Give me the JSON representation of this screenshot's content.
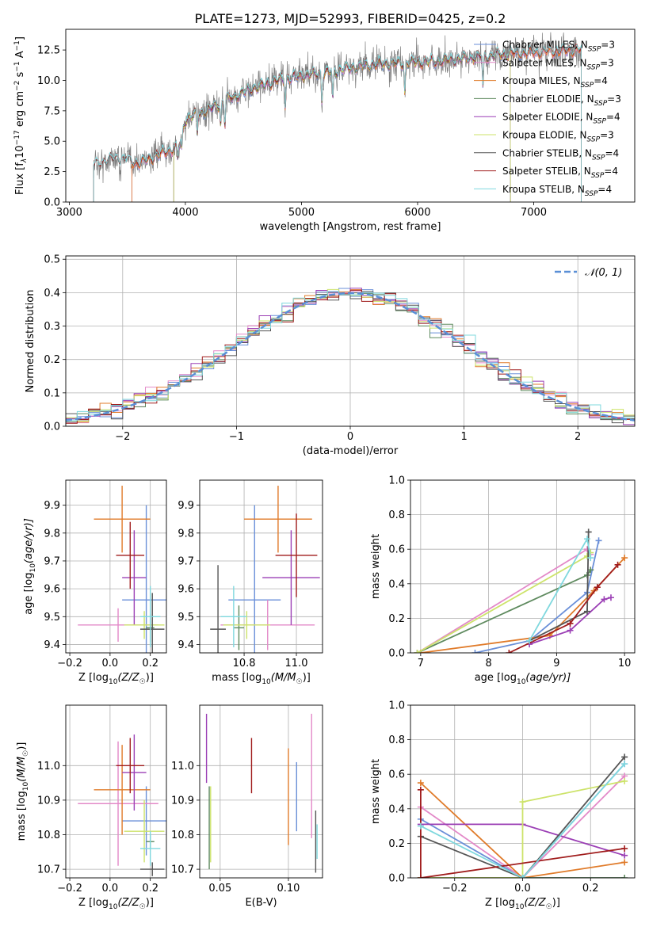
{
  "figure": {
    "title": "PLATE=1273, MJD=52993, FIBERID=0425, z=0.2"
  },
  "colors": {
    "chabrier_miles": "#6a8fd8",
    "salpeter_miles": "#e389c8",
    "kroupa_miles": "#e07b2a",
    "chabrier_elodie": "#5e8a5e",
    "salpeter_elodie": "#9b3fb5",
    "kroupa_elodie": "#cde36a",
    "chabrier_stelib": "#555555",
    "salpeter_stelib": "#a01c1c",
    "kroupa_stelib": "#7fd8de",
    "grid": "#b0b0b0",
    "gauss": "#5a8fd6"
  },
  "chart_data": [
    {
      "id": "spectrum",
      "type": "line",
      "xlabel": "wavelength [Angstrom, rest frame]",
      "ylabel_main": "Flux [f",
      "ylabel_sub": "λ",
      "ylabel_rest": "10",
      "ylabel_exp": "−17",
      "ylabel_unit": " erg cm",
      "ylabel_exp2": "−2",
      "ylabel_s": " s",
      "ylabel_exp3": "−1",
      "ylabel_a": " A",
      "ylabel_exp4": "−1",
      "ylabel_end": "]",
      "xlim": [
        2970,
        7870
      ],
      "ylim": [
        0,
        14.2
      ],
      "xticks": [
        3000,
        4000,
        5000,
        6000,
        7000
      ],
      "yticks": [
        0.0,
        2.5,
        5.0,
        7.5,
        10.0,
        12.5
      ],
      "xtick_labels": [
        "3000",
        "4000",
        "5000",
        "6000",
        "7000"
      ],
      "ytick_labels": [
        "0.0",
        "2.5",
        "5.0",
        "7.5",
        "10.0",
        "12.5"
      ],
      "continuum_wave": [
        3210,
        3400,
        3600,
        3800,
        3950,
        4000,
        4200,
        4400,
        4600,
        4800,
        5000,
        5200,
        5400,
        5600,
        5800,
        6000,
        6200,
        6400,
        6600,
        6800,
        7000,
        7200,
        7400,
        7800
      ],
      "continuum_flux": [
        3.0,
        3.6,
        3.2,
        4.0,
        4.6,
        6.8,
        7.6,
        8.6,
        9.4,
        10.0,
        10.4,
        10.6,
        11.0,
        11.3,
        11.4,
        11.5,
        11.6,
        11.8,
        12.0,
        12.2,
        12.3,
        12.4,
        12.5,
        12.5
      ],
      "absorption_lines": [
        3934,
        3969,
        4102,
        4304,
        4340,
        4861,
        5175,
        5270,
        5890,
        6563
      ],
      "model_edges": [
        {
          "series": "Chabrier MILES",
          "start": 3540,
          "end": 7410
        },
        {
          "series": "Salpeter MILES",
          "start": 3540,
          "end": 7410
        },
        {
          "series": "Kroupa MILES",
          "start": 3540,
          "end": 7410
        },
        {
          "series": "Chabrier ELODIE",
          "start": 3900,
          "end": 6800
        },
        {
          "series": "Salpeter ELODIE",
          "start": 3900,
          "end": 6800
        },
        {
          "series": "Kroupa ELODIE",
          "start": 3900,
          "end": 6800
        },
        {
          "series": "Chabrier STELIB",
          "start": 3210,
          "end": 7410
        },
        {
          "series": "Salpeter STELIB",
          "start": 3210,
          "end": 7410
        },
        {
          "series": "Kroupa STELIB",
          "start": 3210,
          "end": 7410
        }
      ],
      "legend": [
        {
          "label_a": "Chabrier MILES, N",
          "label_sub": "SSP",
          "label_b": "=3",
          "color": "#6a8fd8"
        },
        {
          "label_a": "Salpeter MILES, N",
          "label_sub": "SSP",
          "label_b": "=3",
          "color": "#e389c8"
        },
        {
          "label_a": "Kroupa MILES, N",
          "label_sub": "SSP",
          "label_b": "=4",
          "color": "#e07b2a"
        },
        {
          "label_a": "Chabrier ELODIE, N",
          "label_sub": "SSP",
          "label_b": "=3",
          "color": "#5e8a5e"
        },
        {
          "label_a": "Salpeter ELODIE, N",
          "label_sub": "SSP",
          "label_b": "=4",
          "color": "#9b3fb5"
        },
        {
          "label_a": "Kroupa ELODIE, N",
          "label_sub": "SSP",
          "label_b": "=3",
          "color": "#cde36a"
        },
        {
          "label_a": "Chabrier STELIB, N",
          "label_sub": "SSP",
          "label_b": "=4",
          "color": "#555555"
        },
        {
          "label_a": "Salpeter STELIB, N",
          "label_sub": "SSP",
          "label_b": "=4",
          "color": "#a01c1c"
        },
        {
          "label_a": "Kroupa STELIB, N",
          "label_sub": "SSP",
          "label_b": "=4",
          "color": "#7fd8de"
        }
      ],
      "legend_position": "top-right"
    },
    {
      "id": "residuals",
      "type": "histogram",
      "xlabel": "(data-model)/error",
      "ylabel": "Normed distribution",
      "xlim": [
        -2.5,
        2.5
      ],
      "ylim": [
        0,
        0.51
      ],
      "xticks": [
        -2,
        -1,
        0,
        1,
        2
      ],
      "yticks": [
        0.0,
        0.1,
        0.2,
        0.3,
        0.4,
        0.5
      ],
      "xtick_labels": [
        "−2",
        "−1",
        "0",
        "1",
        "2"
      ],
      "ytick_labels": [
        "0.0",
        "0.1",
        "0.2",
        "0.3",
        "0.4",
        "0.5"
      ],
      "bin_edges_start": -2.5,
      "bin_width": 0.1,
      "bin_count": 50,
      "gauss_label": "𝒩(0, 1)",
      "legend_position": "top-right",
      "grid": true
    },
    {
      "id": "age_vs_Z",
      "type": "errorbar",
      "xlabel": "Z [log",
      "xlabel_sub": "10",
      "xlabel_end": "(Z/Z",
      "xlabel_sun": "☉",
      "xlabel_close": ")]",
      "ylabel": "age  [log",
      "ylabel_sub": "10",
      "ylabel_end": "(age/yr)]",
      "xlim": [
        -0.22,
        0.28
      ],
      "ylim": [
        9.37,
        9.99
      ],
      "xticks": [
        -0.2,
        0.0,
        0.2
      ],
      "yticks": [
        9.4,
        9.5,
        9.6,
        9.7,
        9.8,
        9.9
      ],
      "xtick_labels": [
        "−0.2",
        "0.0",
        "0.2"
      ],
      "ytick_labels": [
        "9.4",
        "9.5",
        "9.6",
        "9.7",
        "9.8",
        "9.9"
      ],
      "points": [
        {
          "series": "Chabrier MILES",
          "x": 0.18,
          "xerr": 0.12,
          "y": 9.56,
          "yerr": 0.34
        },
        {
          "series": "Salpeter MILES",
          "x": 0.04,
          "xerr": 0.2,
          "y": 9.47,
          "yerr": 0.06
        },
        {
          "series": "Kroupa MILES",
          "x": 0.06,
          "xerr": 0.14,
          "y": 9.85,
          "yerr": 0.12
        },
        {
          "series": "Chabrier ELODIE",
          "x": 0.2,
          "xerr": 0.02,
          "y": 9.46,
          "yerr": 0.05
        },
        {
          "series": "Salpeter ELODIE",
          "x": 0.12,
          "xerr": 0.06,
          "y": 9.64,
          "yerr": 0.17
        },
        {
          "series": "Kroupa ELODIE",
          "x": 0.17,
          "xerr": 0.1,
          "y": 9.47,
          "yerr": 0.05
        },
        {
          "series": "Chabrier STELIB",
          "x": 0.21,
          "xerr": 0.06,
          "y": 9.455,
          "yerr": 0.13
        },
        {
          "series": "Salpeter STELIB",
          "x": 0.1,
          "xerr": 0.07,
          "y": 9.72,
          "yerr": 0.12
        },
        {
          "series": "Kroupa STELIB",
          "x": 0.2,
          "xerr": 0.05,
          "y": 9.5,
          "yerr": 0.11
        }
      ]
    },
    {
      "id": "age_vs_mass",
      "type": "errorbar",
      "xlabel": "mass [log",
      "xlabel_sub": "10",
      "xlabel_end": "(M/M",
      "xlabel_sun": "☉",
      "xlabel_close": ")]",
      "xlim": [
        10.63,
        11.1
      ],
      "ylim": [
        9.37,
        9.99
      ],
      "xticks": [
        10.8,
        11.0
      ],
      "yticks": [
        9.4,
        9.5,
        9.6,
        9.7,
        9.8,
        9.9
      ],
      "xtick_labels": [
        "10.8",
        "11.0"
      ],
      "ytick_labels": [
        "9.4",
        "9.5",
        "9.6",
        "9.7",
        "9.8",
        "9.9"
      ],
      "points": [
        {
          "series": "Chabrier MILES",
          "x": 10.84,
          "xerr": 0.1,
          "y": 9.56,
          "yerr": 0.34
        },
        {
          "series": "Salpeter MILES",
          "x": 10.89,
          "xerr": 0.18,
          "y": 9.47,
          "yerr": 0.09
        },
        {
          "series": "Kroupa MILES",
          "x": 10.93,
          "xerr": 0.13,
          "y": 9.85,
          "yerr": 0.12
        },
        {
          "series": "Chabrier ELODIE",
          "x": 10.78,
          "xerr": 0.02,
          "y": 9.46,
          "yerr": 0.08
        },
        {
          "series": "Salpeter ELODIE",
          "x": 10.98,
          "xerr": 0.11,
          "y": 9.64,
          "yerr": 0.17
        },
        {
          "series": "Kroupa ELODIE",
          "x": 10.81,
          "xerr": 0.09,
          "y": 9.47,
          "yerr": 0.05
        },
        {
          "series": "Chabrier STELIB",
          "x": 10.7,
          "xerr": 0.03,
          "y": 9.455,
          "yerr": 0.23
        },
        {
          "series": "Salpeter STELIB",
          "x": 11.0,
          "xerr": 0.08,
          "y": 9.72,
          "yerr": 0.15
        },
        {
          "series": "Kroupa STELIB",
          "x": 10.76,
          "xerr": 0.05,
          "y": 9.5,
          "yerr": 0.11
        }
      ]
    },
    {
      "id": "weight_vs_age",
      "type": "line",
      "xlabel": "age  [log",
      "xlabel_sub": "10",
      "xlabel_end": "(age/yr)]",
      "ylabel": "mass weight",
      "xlim": [
        6.85,
        10.15
      ],
      "ylim": [
        0,
        1
      ],
      "xticks": [
        7,
        8,
        9,
        10
      ],
      "yticks": [
        0.0,
        0.2,
        0.4,
        0.6,
        0.8,
        1.0
      ],
      "xtick_labels": [
        "7",
        "8",
        "9",
        "10"
      ],
      "ytick_labels": [
        "0.0",
        "0.2",
        "0.4",
        "0.6",
        "0.8",
        "1.0"
      ],
      "series": [
        {
          "name": "Chabrier MILES",
          "x": [
            7.8,
            8.6,
            9.45,
            9.62
          ],
          "y": [
            0.0,
            0.07,
            0.35,
            0.65
          ]
        },
        {
          "name": "Salpeter MILES",
          "x": [
            6.95,
            9.45,
            9.5
          ],
          "y": [
            0.0,
            0.6,
            0.57
          ]
        },
        {
          "name": "Kroupa MILES",
          "x": [
            7.0,
            8.9,
            9.55,
            10.0
          ],
          "y": [
            0.0,
            0.1,
            0.36,
            0.55
          ]
        },
        {
          "name": "Chabrier ELODIE",
          "x": [
            6.95,
            9.45,
            9.5
          ],
          "y": [
            0.0,
            0.45,
            0.48
          ]
        },
        {
          "name": "Salpeter ELODIE",
          "x": [
            8.6,
            9.2,
            9.7,
            9.8
          ],
          "y": [
            0.05,
            0.13,
            0.31,
            0.32
          ]
        },
        {
          "name": "Kroupa ELODIE",
          "x": [
            6.95,
            9.45,
            9.5
          ],
          "y": [
            0.0,
            0.56,
            0.58
          ]
        },
        {
          "name": "Chabrier STELIB",
          "x": [
            8.6,
            9.45,
            9.47
          ],
          "y": [
            0.07,
            0.24,
            0.7
          ]
        },
        {
          "name": "Salpeter STELIB",
          "x": [
            8.3,
            9.2,
            9.6,
            9.9
          ],
          "y": [
            0.0,
            0.17,
            0.38,
            0.51
          ]
        },
        {
          "name": "Kroupa STELIB",
          "x": [
            8.6,
            9.45,
            9.5
          ],
          "y": [
            0.07,
            0.66,
            0.55
          ]
        }
      ],
      "grid": true
    },
    {
      "id": "mass_vs_Z",
      "type": "errorbar",
      "xlabel": "Z [log",
      "xlabel_sub": "10",
      "xlabel_end": "(Z/Z",
      "xlabel_sun": "☉",
      "xlabel_close": ")]",
      "ylabel": "mass [log",
      "ylabel_sub": "10",
      "ylabel_end": "(M/M",
      "ylabel_sun": "☉",
      "ylabel_close": ")]",
      "xlim": [
        -0.22,
        0.28
      ],
      "ylim": [
        10.675,
        11.175
      ],
      "xticks": [
        -0.2,
        0.0,
        0.2
      ],
      "yticks": [
        10.7,
        10.8,
        10.9,
        11.0
      ],
      "xtick_labels": [
        "−0.2",
        "0.0",
        "0.2"
      ],
      "ytick_labels": [
        "10.7",
        "10.8",
        "10.9",
        "11.0"
      ],
      "points": [
        {
          "series": "Chabrier MILES",
          "x": 0.18,
          "xerr": 0.12,
          "y": 10.84,
          "yerr": 0.1
        },
        {
          "series": "Salpeter MILES",
          "x": 0.04,
          "xerr": 0.2,
          "y": 10.89,
          "yerr": 0.18
        },
        {
          "series": "Kroupa MILES",
          "x": 0.06,
          "xerr": 0.14,
          "y": 10.93,
          "yerr": 0.13
        },
        {
          "series": "Chabrier ELODIE",
          "x": 0.2,
          "xerr": 0.02,
          "y": 10.78,
          "yerr": 0.02
        },
        {
          "series": "Salpeter ELODIE",
          "x": 0.12,
          "xerr": 0.06,
          "y": 10.98,
          "yerr": 0.11
        },
        {
          "series": "Kroupa ELODIE",
          "x": 0.17,
          "xerr": 0.1,
          "y": 10.81,
          "yerr": 0.09
        },
        {
          "series": "Chabrier STELIB",
          "x": 0.21,
          "xerr": 0.06,
          "y": 10.7,
          "yerr": 0.02
        },
        {
          "series": "Salpeter STELIB",
          "x": 0.1,
          "xerr": 0.07,
          "y": 11.0,
          "yerr": 0.08
        },
        {
          "series": "Kroupa STELIB",
          "x": 0.2,
          "xerr": 0.05,
          "y": 10.76,
          "yerr": 0.05
        }
      ]
    },
    {
      "id": "mass_vs_ebv",
      "type": "errorbar",
      "xlabel": "E(B-V)",
      "xlim": [
        0.035,
        0.125
      ],
      "ylim": [
        10.675,
        11.175
      ],
      "xticks": [
        0.05,
        0.1
      ],
      "yticks": [
        10.7,
        10.8,
        10.9,
        11.0
      ],
      "xtick_labels": [
        "0.05",
        "0.10"
      ],
      "ytick_labels": [
        "10.7",
        "10.8",
        "10.9",
        "11.0"
      ],
      "points": [
        {
          "series": "Chabrier MILES",
          "x": 0.106,
          "y": 10.91,
          "yerr": 0.1
        },
        {
          "series": "Salpeter MILES",
          "x": 0.117,
          "y": 10.97,
          "yerr": 0.18
        },
        {
          "series": "Kroupa MILES",
          "x": 0.1,
          "y": 10.91,
          "yerr": 0.14
        },
        {
          "series": "Chabrier ELODIE",
          "x": 0.042,
          "y": 10.82,
          "yerr": 0.12
        },
        {
          "series": "Salpeter ELODIE",
          "x": 0.04,
          "y": 11.05,
          "yerr": 0.1
        },
        {
          "series": "Kroupa ELODIE",
          "x": 0.043,
          "y": 10.83,
          "yerr": 0.11
        },
        {
          "series": "Chabrier STELIB",
          "x": 0.12,
          "y": 10.78,
          "yerr": 0.09
        },
        {
          "series": "Salpeter STELIB",
          "x": 0.073,
          "y": 11.0,
          "yerr": 0.08
        },
        {
          "series": "Kroupa STELIB",
          "x": 0.121,
          "y": 10.78,
          "yerr": 0.05
        }
      ]
    },
    {
      "id": "weight_vs_Z",
      "type": "line",
      "xlabel": "Z [log",
      "xlabel_sub": "10",
      "xlabel_end": "(Z/Z",
      "xlabel_sun": "☉",
      "xlabel_close": ")]",
      "ylabel": "mass weight",
      "xlim": [
        -0.33,
        0.33
      ],
      "ylim": [
        0,
        1
      ],
      "xticks": [
        -0.2,
        0.0,
        0.2
      ],
      "yticks": [
        0.0,
        0.2,
        0.4,
        0.6,
        0.8,
        1.0
      ],
      "xtick_labels": [
        "−0.2",
        "0.0",
        "0.2"
      ],
      "ytick_labels": [
        "0.0",
        "0.2",
        "0.4",
        "0.6",
        "0.8",
        "1.0"
      ],
      "series": [
        {
          "name": "Chabrier MILES",
          "x": [
            -0.3,
            0.0,
            0.3
          ],
          "y": [
            0.34,
            0.0,
            0.66
          ]
        },
        {
          "name": "Salpeter MILES",
          "x": [
            -0.3,
            0.0,
            0.3
          ],
          "y": [
            0.41,
            0.0,
            0.59
          ]
        },
        {
          "name": "Kroupa MILES",
          "x": [
            -0.3,
            0.0,
            0.3
          ],
          "y": [
            0.55,
            0.0,
            0.09
          ]
        },
        {
          "name": "Chabrier ELODIE",
          "x": [
            -0.3,
            0.0,
            0.3
          ],
          "y": [
            0.0,
            0.0,
            0.0
          ]
        },
        {
          "name": "Salpeter ELODIE",
          "x": [
            -0.3,
            0.0,
            0.3
          ],
          "y": [
            0.31,
            0.31,
            0.13
          ]
        },
        {
          "name": "Kroupa ELODIE",
          "x": [
            -0.3,
            0.0,
            0.0,
            0.3
          ],
          "y": [
            0.0,
            0.0,
            0.44,
            0.56
          ]
        },
        {
          "name": "Chabrier STELIB",
          "x": [
            -0.3,
            0.0,
            0.3
          ],
          "y": [
            0.24,
            0.0,
            0.7
          ]
        },
        {
          "name": "Salpeter STELIB",
          "x": [
            -0.3,
            -0.3,
            0.3
          ],
          "y": [
            0.51,
            0.0,
            0.17
          ]
        },
        {
          "name": "Kroupa STELIB",
          "x": [
            -0.3,
            0.0,
            0.3
          ],
          "y": [
            0.3,
            0.0,
            0.66
          ]
        }
      ],
      "grid": true
    }
  ]
}
